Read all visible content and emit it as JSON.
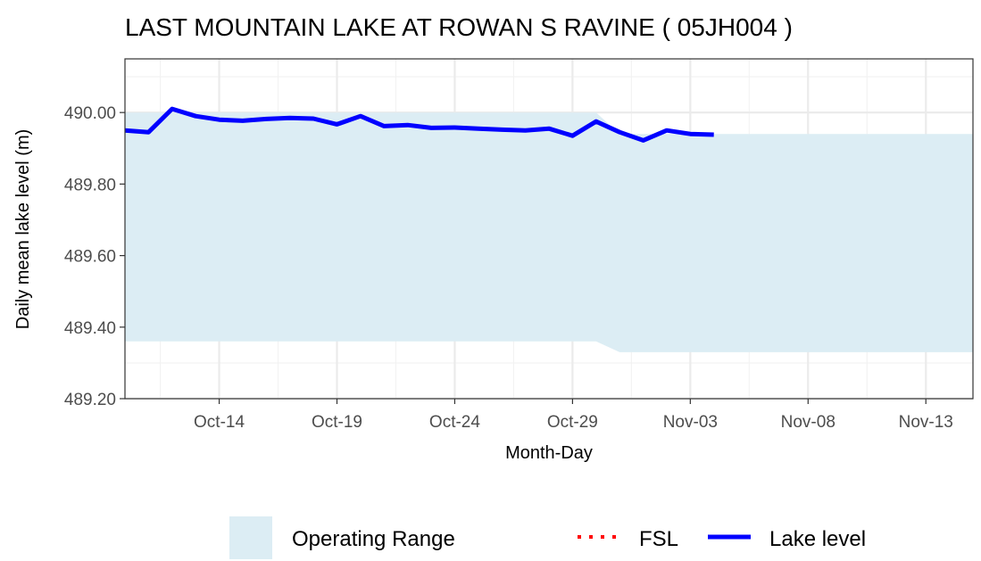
{
  "chart_data": {
    "type": "line",
    "title": "LAST MOUNTAIN LAKE AT ROWAN S RAVINE ( 05JH004 )",
    "xlabel": "Month-Day",
    "ylabel": "Daily mean lake level (m)",
    "xlim": [
      "10-10",
      "11-15"
    ],
    "ylim": [
      489.2,
      490.15
    ],
    "x_ticks": [
      "Oct-14",
      "Oct-19",
      "Oct-24",
      "Oct-29",
      "Nov-03",
      "Nov-08",
      "Nov-13"
    ],
    "y_ticks": [
      "489.20",
      "489.40",
      "489.60",
      "489.80",
      "490.00"
    ],
    "grid": true,
    "legend_position": "bottom",
    "series": [
      {
        "name": "Lake level",
        "color": "#0000ff",
        "style": "solid",
        "x": [
          "10-10",
          "10-11",
          "10-12",
          "10-13",
          "10-14",
          "10-15",
          "10-16",
          "10-17",
          "10-18",
          "10-19",
          "10-20",
          "10-21",
          "10-22",
          "10-23",
          "10-24",
          "10-25",
          "10-26",
          "10-27",
          "10-28",
          "10-29",
          "10-30",
          "10-31",
          "11-01",
          "11-02",
          "11-03",
          "11-04"
        ],
        "values": [
          489.95,
          489.945,
          490.01,
          489.99,
          489.98,
          489.977,
          489.982,
          489.985,
          489.983,
          489.967,
          489.99,
          489.962,
          489.965,
          489.957,
          489.958,
          489.955,
          489.952,
          489.95,
          489.955,
          489.935,
          489.975,
          489.945,
          489.922,
          489.95,
          489.94,
          489.938
        ]
      }
    ],
    "operating_range": {
      "name": "Operating Range",
      "color": "#dcedf4",
      "x": [
        "10-10",
        "10-30",
        "10-31",
        "11-15"
      ],
      "upper": [
        490.0,
        490.0,
        489.94,
        489.94
      ],
      "lower": [
        489.36,
        489.36,
        489.33,
        489.33
      ]
    },
    "fsl": {
      "name": "FSL",
      "color": "#ff0000",
      "style": "dotted"
    }
  }
}
